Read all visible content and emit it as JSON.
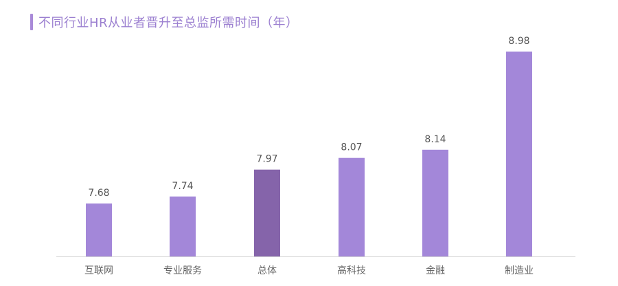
{
  "title": "不同行业HR从业者晋升至总监所需时间（年）",
  "chart_data": {
    "type": "bar",
    "title": "不同行业HR从业者晋升至总监所需时间（年）",
    "categories": [
      "互联网",
      "专业服务",
      "总体",
      "高科技",
      "金融",
      "制造业"
    ],
    "values": [
      7.68,
      7.74,
      7.97,
      8.07,
      8.14,
      8.98
    ],
    "value_labels": [
      "7.68",
      "7.74",
      "7.97",
      "8.07",
      "8.14",
      "8.98"
    ],
    "highlight_category": "总体",
    "colors": {
      "bar": "#a387d9",
      "highlight": "#8564aa",
      "axis": "#d4d4d4"
    },
    "grid": false,
    "legend": "none"
  }
}
